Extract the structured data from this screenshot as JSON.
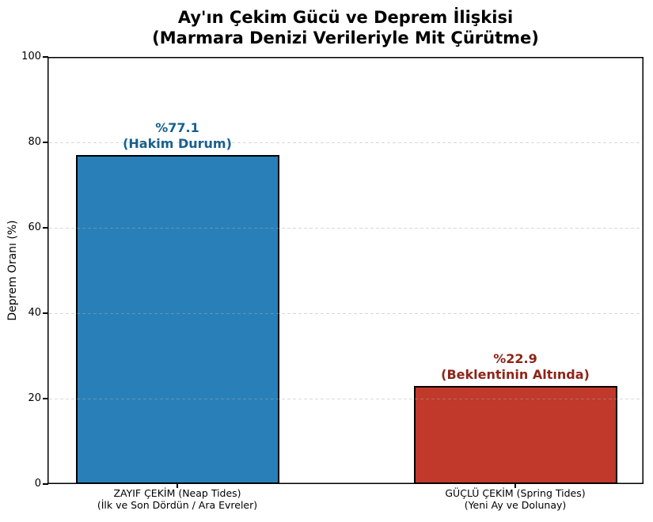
{
  "chart_data": {
    "type": "bar",
    "title": "Ay'ın Çekim Gücü ve Deprem İlişkisi",
    "subtitle": "(Marmara Denizi Verileriyle Mit Çürütme)",
    "ylabel": "Deprem Oranı (%)",
    "xlabel": "",
    "ylim": [
      0,
      100
    ],
    "yticks": [
      "0",
      "20",
      "40",
      "60",
      "80",
      "100"
    ],
    "grid": {
      "axis": "y",
      "style": "dashed",
      "color": "#d9d9d9",
      "drawn_over_bars": true
    },
    "legend": "none",
    "categories": [
      "ZAYIF ÇEKİM (Neap Tides) (İlk ve Son Dördün / Ara Evreler)",
      "GÜÇLÜ ÇEKİM (Spring Tides) (Yeni Ay ve Dolunay)"
    ],
    "values": [
      77.1,
      22.9
    ],
    "bars": [
      {
        "category_line1": "ZAYIF ÇEKİM (Neap Tides)",
        "category_line2": "(İlk ve Son Dördün / Ara Evreler)",
        "value": 77.1,
        "color": "#2980b9",
        "edge_color": "#000000",
        "label_line1": "%77.1",
        "label_line2": "(Hakim Durum)",
        "label_color": "#18608f"
      },
      {
        "category_line1": "GÜÇLÜ ÇEKİM (Spring Tides)",
        "category_line2": "(Yeni Ay ve Dolunay)",
        "value": 22.9,
        "color": "#c0392b",
        "edge_color": "#000000",
        "label_line1": "%22.9",
        "label_line2": "(Beklentinin Altında)",
        "label_color": "#8e2418"
      }
    ]
  }
}
